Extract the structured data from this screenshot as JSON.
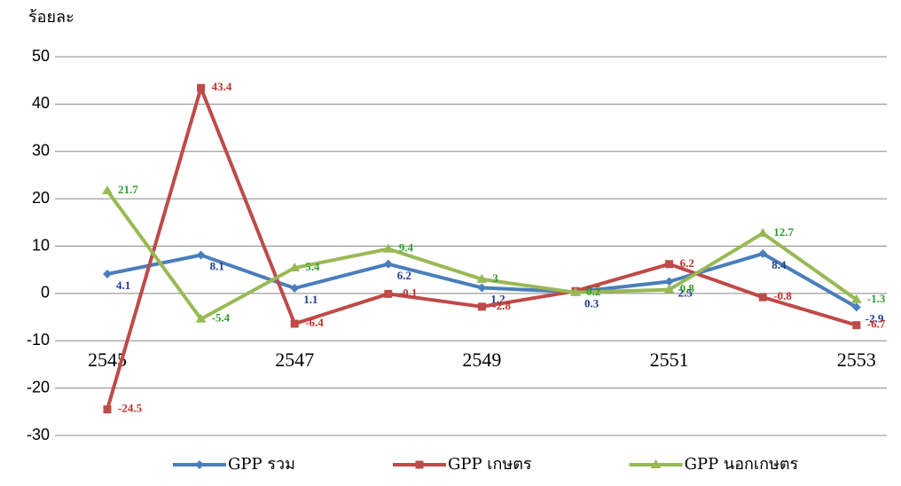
{
  "chart_data": {
    "type": "line",
    "y_label": "ร้อยละ",
    "categories": [
      "2545",
      null,
      "2547",
      null,
      "2549",
      null,
      "2551",
      null,
      "2553"
    ],
    "series": [
      {
        "name": "GPP รวม",
        "color": "#4a7ebb",
        "label_color": "#1f3d8c",
        "marker": "diamond",
        "values": [
          4.1,
          8.1,
          1.1,
          6.2,
          1.2,
          0.3,
          2.5,
          8.4,
          -2.9
        ]
      },
      {
        "name": "GPP เกษตร",
        "color": "#be4b48",
        "label_color": "#c0302b",
        "marker": "square",
        "values": [
          -24.5,
          43.4,
          -6.4,
          -0.1,
          -2.8,
          0.5,
          6.2,
          -0.8,
          -6.7
        ]
      },
      {
        "name": "GPP นอกเกษตร",
        "color": "#98b954",
        "label_color": "#2e9e2e",
        "marker": "triangle",
        "values": [
          21.7,
          -5.4,
          5.4,
          9.4,
          3,
          0.2,
          0.8,
          12.7,
          -1.3
        ]
      }
    ],
    "ylim": [
      -30,
      50
    ],
    "yticks": [
      -30,
      -20,
      -10,
      0,
      10,
      20,
      30,
      40,
      50
    ],
    "grid": true,
    "legend": "bottom"
  }
}
